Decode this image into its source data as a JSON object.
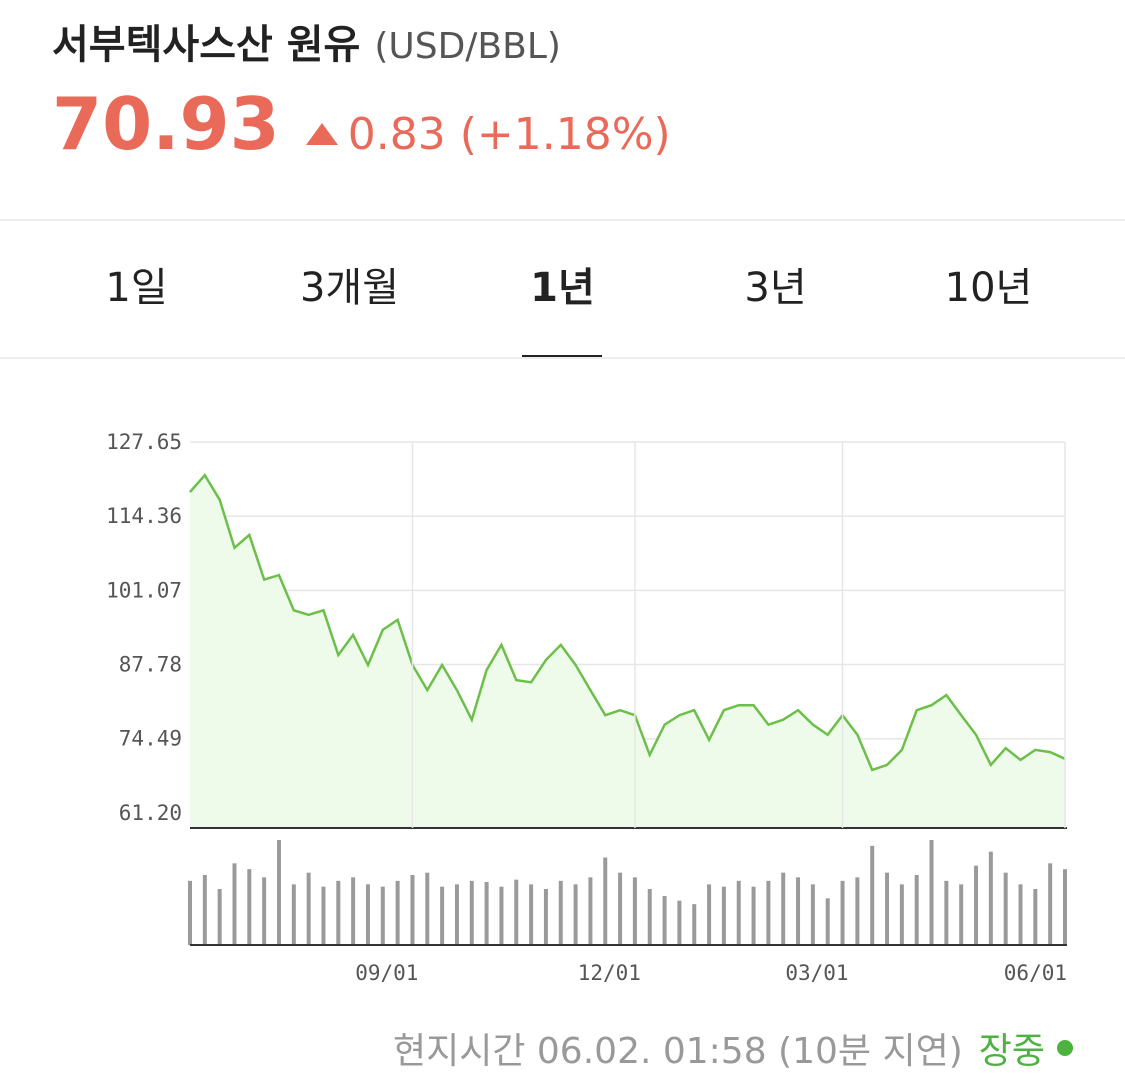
{
  "header": {
    "title": "서부텍사스산 원유",
    "unit": "(USD/BBL)",
    "price": "70.93",
    "change": "0.83",
    "change_pct": "(+1.18%)"
  },
  "tabs": [
    "1일",
    "3개월",
    "1년",
    "3년",
    "10년"
  ],
  "chart_data": [
    {
      "type": "line",
      "color": "#6cc04a",
      "fill": "#effbea",
      "grid": true,
      "ylim": [
        58.5,
        127.65
      ],
      "yticks": [
        {
          "value": 61.2,
          "label": "61.20"
        },
        74.49,
        87.78,
        101.07,
        114.36,
        127.65
      ],
      "values": [
        118.7,
        121.7,
        117.3,
        108.7,
        111.0,
        103.0,
        103.8,
        97.5,
        96.7,
        97.5,
        89.5,
        93.1,
        87.7,
        94.0,
        95.8,
        87.7,
        83.2,
        87.7,
        83.2,
        77.9,
        86.8,
        91.3,
        85.0,
        84.6,
        88.6,
        91.3,
        87.7,
        83.2,
        78.7,
        79.6,
        78.7,
        71.6,
        77.0,
        78.7,
        79.6,
        74.3,
        79.6,
        80.5,
        80.5,
        77.0,
        77.9,
        79.6,
        77.0,
        75.2,
        78.7,
        75.2,
        68.9,
        69.8,
        72.5,
        79.6,
        80.5,
        82.3,
        78.7,
        75.2,
        69.8,
        72.8,
        70.7,
        72.5,
        72.1,
        70.9
      ]
    },
    {
      "type": "bar",
      "color": "#9a9a9a",
      "categories": [
        null,
        null,
        null,
        null,
        null,
        null,
        null,
        null,
        null,
        null,
        null,
        null,
        null,
        null,
        null,
        "09/01",
        null,
        null,
        null,
        null,
        null,
        null,
        null,
        null,
        null,
        null,
        null,
        null,
        null,
        null,
        "12/01",
        null,
        null,
        null,
        null,
        null,
        null,
        null,
        null,
        null,
        null,
        null,
        null,
        null,
        "03/01",
        null,
        null,
        null,
        null,
        null,
        null,
        null,
        null,
        null,
        null,
        null,
        null,
        null,
        null,
        "06/01"
      ],
      "values": [
        55,
        60,
        48,
        70,
        65,
        58,
        90,
        52,
        62,
        50,
        55,
        58,
        52,
        50,
        55,
        60,
        62,
        50,
        52,
        55,
        54,
        50,
        56,
        52,
        48,
        55,
        52,
        58,
        75,
        62,
        58,
        48,
        42,
        38,
        35,
        52,
        50,
        55,
        50,
        55,
        62,
        58,
        52,
        40,
        55,
        58,
        85,
        62,
        52,
        60,
        90,
        55,
        52,
        68,
        80,
        62,
        52,
        48,
        70,
        65
      ]
    }
  ],
  "footer": {
    "time": "현지시간 06.02. 01:58 (10분 지연)",
    "status": "장중"
  }
}
